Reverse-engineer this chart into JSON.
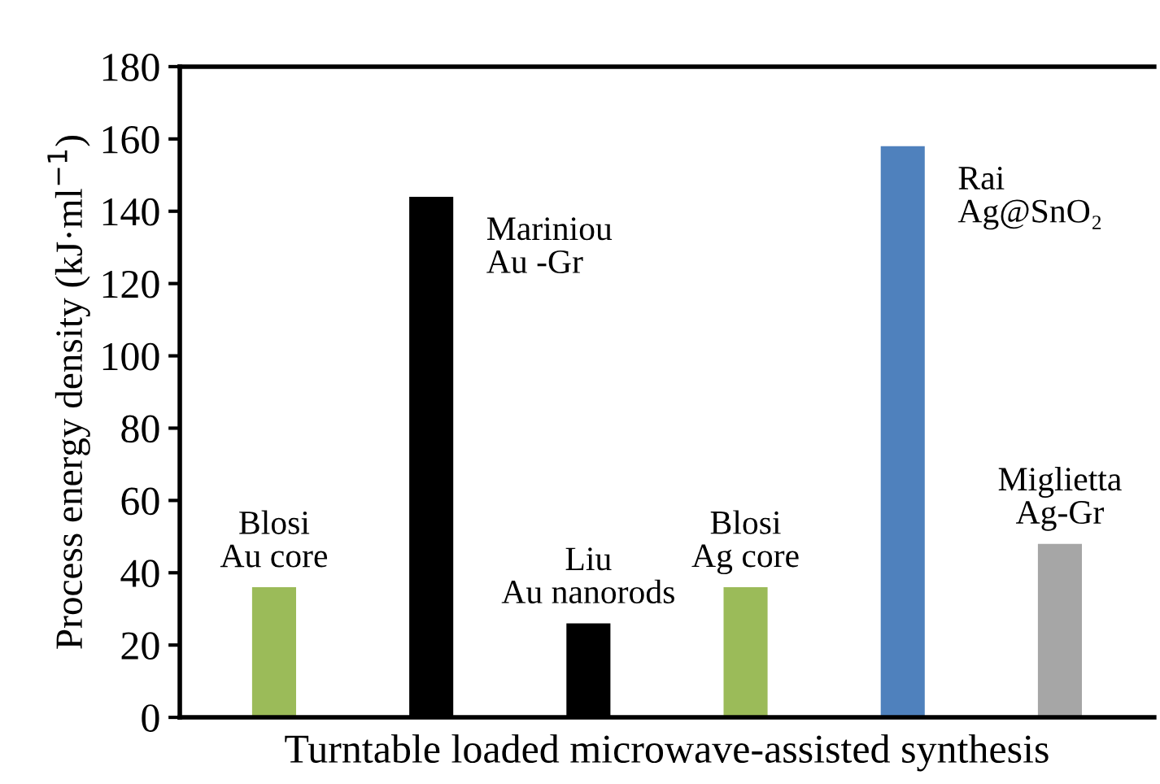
{
  "chart_data": {
    "type": "bar",
    "xlabel": "Turntable loaded microwave-assisted synthesis",
    "ylabel": "Process energy density (kJ·ml$^{−1}$)",
    "categories": [
      null,
      null,
      null,
      null,
      null,
      null
    ],
    "values": [
      36,
      144,
      26,
      36,
      158,
      48
    ],
    "colors": [
      "#9bbb59",
      "#000000",
      "#000000",
      "#9bbb59",
      "#4f81bd",
      "#a6a6a6"
    ],
    "ylim": [
      0,
      180
    ],
    "yticks": [
      0,
      20,
      40,
      60,
      80,
      100,
      120,
      140,
      160,
      180
    ],
    "grid": false,
    "annotations": [
      "Blosi\nAu core",
      "Mariniou\nAu -Gr",
      "Liu\nAu nanorods",
      "Blosi\nAg core",
      "Rai\nAg@SnO₂",
      "Miglietta\nAg-Gr"
    ]
  }
}
